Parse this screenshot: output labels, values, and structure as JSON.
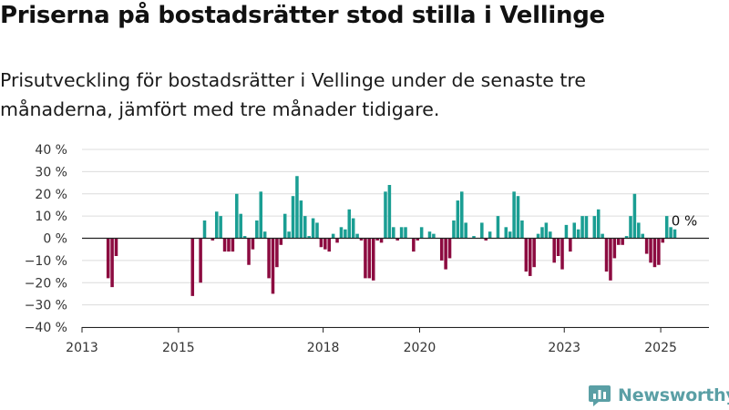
{
  "title": "Priserna på bostadsrätter stod stilla i Vellinge",
  "subtitle": "Prisutveckling för bostadsrätter i Vellinge under de senaste tre månaderna, jämfört med tre månader tidigare.",
  "brand": {
    "name": "Newsworthy",
    "color": "#5a9fa5"
  },
  "chart_data": {
    "type": "bar",
    "unit": "%",
    "y_ticks": [
      -40,
      -30,
      -20,
      -10,
      0,
      10,
      20,
      30,
      40
    ],
    "y_tick_labels": [
      "−40 %",
      "−30 %",
      "−20 %",
      "−10 %",
      "0 %",
      "10 %",
      "20 %",
      "30 %",
      "40 %"
    ],
    "ylim": [
      -40,
      40
    ],
    "x_ticks": [
      "2013",
      "2015",
      "2018",
      "2020",
      "2023",
      "2025"
    ],
    "xlim": [
      "2013-01",
      "2026-01"
    ],
    "grid": true,
    "colors": {
      "positive": "#1a9e93",
      "negative": "#8c0b40"
    },
    "last_value_label": "0 %",
    "dates": [
      "2013-07",
      "2013-08",
      "2013-09",
      "2013-10",
      "2014-01",
      "2014-04",
      "2014-07",
      "2014-10",
      "2015-01",
      "2015-04",
      "2015-06",
      "2015-07",
      "2015-08",
      "2015-09",
      "2015-10",
      "2015-11",
      "2015-12",
      "2016-01",
      "2016-02",
      "2016-03",
      "2016-04",
      "2016-05",
      "2016-06",
      "2016-07",
      "2016-08",
      "2016-09",
      "2016-10",
      "2016-11",
      "2016-12",
      "2017-01",
      "2017-02",
      "2017-03",
      "2017-04",
      "2017-05",
      "2017-06",
      "2017-07",
      "2017-08",
      "2017-09",
      "2017-10",
      "2017-11",
      "2017-12",
      "2018-01",
      "2018-02",
      "2018-03",
      "2018-04",
      "2018-05",
      "2018-06",
      "2018-07",
      "2018-08",
      "2018-09",
      "2018-10",
      "2018-11",
      "2018-12",
      "2019-01",
      "2019-02",
      "2019-03",
      "2019-04",
      "2019-05",
      "2019-06",
      "2019-07",
      "2019-08",
      "2019-09",
      "2019-10",
      "2019-11",
      "2019-12",
      "2020-01",
      "2020-02",
      "2020-03",
      "2020-04",
      "2020-05",
      "2020-06",
      "2020-07",
      "2020-08",
      "2020-09",
      "2020-10",
      "2020-11",
      "2020-12",
      "2021-01",
      "2021-02",
      "2021-03",
      "2021-04",
      "2021-05",
      "2021-06",
      "2021-07",
      "2021-08",
      "2021-09",
      "2021-10",
      "2021-11",
      "2021-12",
      "2022-01",
      "2022-02",
      "2022-03",
      "2022-04",
      "2022-05",
      "2022-06",
      "2022-07",
      "2022-08",
      "2022-09",
      "2022-10",
      "2022-11",
      "2022-12",
      "2023-01",
      "2023-02",
      "2023-03",
      "2023-04",
      "2023-05",
      "2023-06",
      "2023-07",
      "2023-08",
      "2023-09",
      "2023-10",
      "2023-11",
      "2023-12",
      "2024-01",
      "2024-02",
      "2024-03",
      "2024-04",
      "2024-05",
      "2024-06",
      "2024-07",
      "2024-08",
      "2024-09",
      "2024-10",
      "2024-11",
      "2024-12",
      "2025-01",
      "2025-02",
      "2025-03",
      "2025-04",
      "2025-05"
    ],
    "values": [
      -18,
      -22,
      -8,
      0,
      0,
      0,
      0,
      0,
      0,
      -26,
      -20,
      8,
      0,
      -1,
      12,
      10,
      -6,
      -6,
      -6,
      20,
      11,
      1,
      -12,
      -5,
      8,
      21,
      3,
      -18,
      -25,
      -13,
      -3,
      11,
      3,
      19,
      28,
      17,
      10,
      1,
      9,
      7,
      -4,
      -5,
      -6,
      2,
      -2,
      5,
      4,
      13,
      9,
      2,
      -1,
      -18,
      -18,
      -19,
      -1,
      -2,
      21,
      24,
      5,
      -1,
      5,
      5,
      0,
      -6,
      -1,
      5,
      0,
      3,
      2,
      0,
      -10,
      -14,
      -9,
      8,
      17,
      21,
      7,
      0,
      1,
      0,
      7,
      -1,
      3,
      0,
      10,
      0,
      5,
      3,
      21,
      19,
      8,
      -15,
      -17,
      -13,
      2,
      5,
      7,
      3,
      -11,
      -8,
      -14,
      6,
      -6,
      7,
      4,
      10,
      10,
      0,
      10,
      13,
      2,
      -15,
      -19,
      -9,
      -3,
      -3,
      1,
      10,
      20,
      7,
      2,
      -7,
      -11,
      -13,
      -12,
      -2,
      10,
      5,
      4,
      0
    ]
  }
}
